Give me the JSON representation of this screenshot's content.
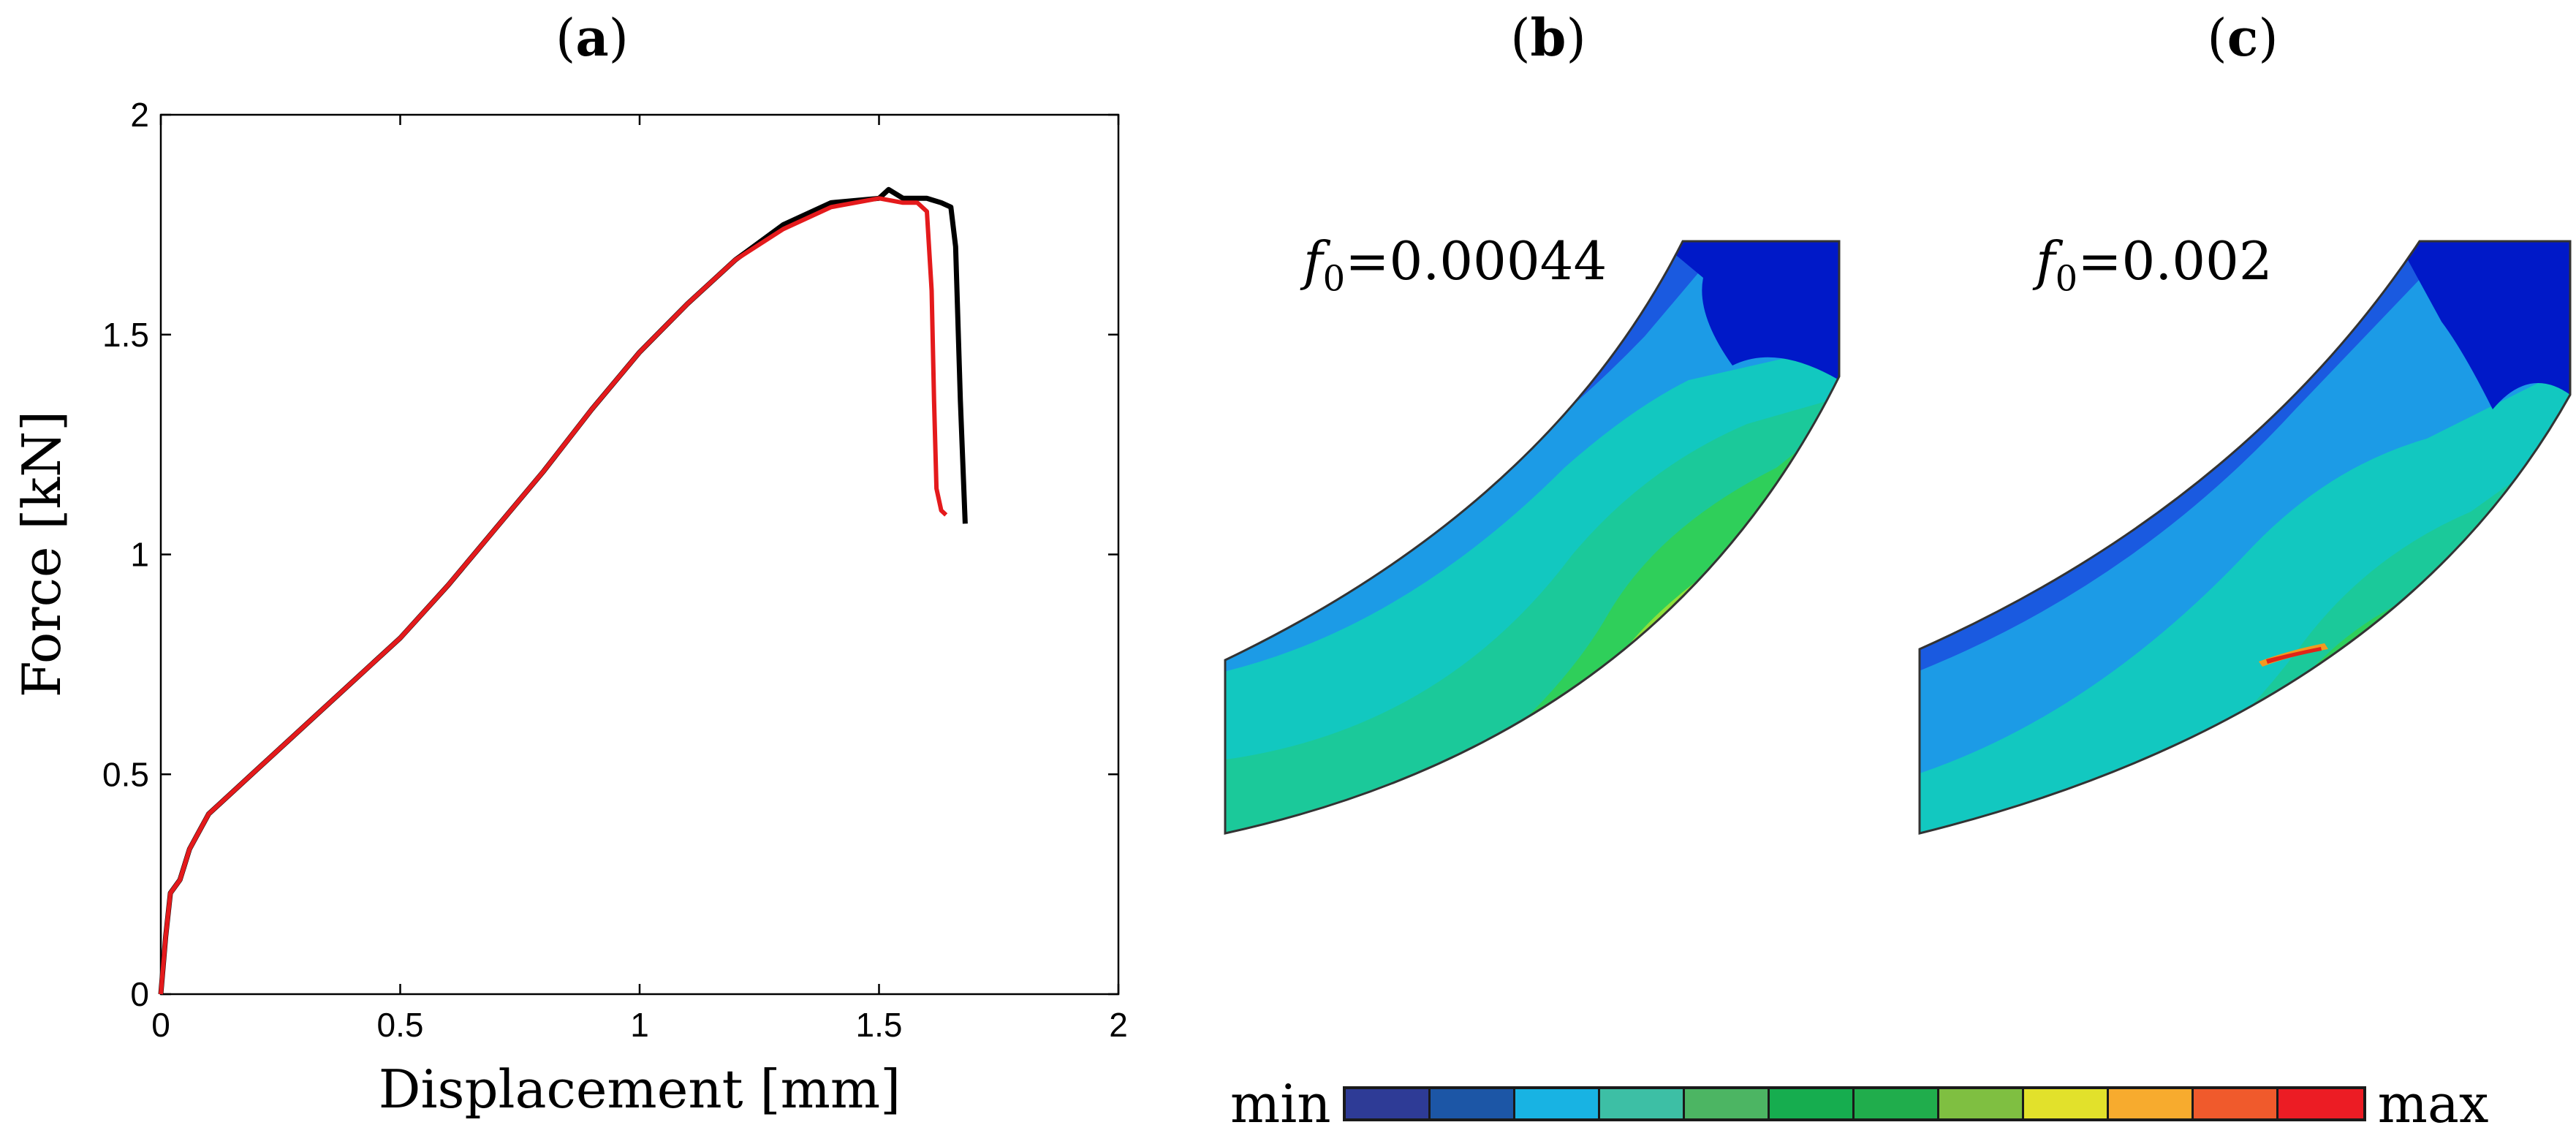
{
  "panels": {
    "a": {
      "open": "(",
      "letter": "a",
      "close": ")"
    },
    "b": {
      "open": "(",
      "letter": "b",
      "close": ")"
    },
    "c": {
      "open": "(",
      "letter": "c",
      "close": ")"
    }
  },
  "chart_data": {
    "type": "line",
    "title": "",
    "xlabel": "Displacement [mm]",
    "ylabel": "Force [kN]",
    "xlim": [
      0,
      2
    ],
    "ylim": [
      0,
      2
    ],
    "xticks": [
      0,
      0.5,
      1,
      1.5,
      2
    ],
    "xtick_labels": [
      "0",
      "0.5",
      "1",
      "1.5",
      "2"
    ],
    "yticks": [
      0,
      0.5,
      1,
      1.5,
      2
    ],
    "ytick_labels": [
      "0",
      "0.5",
      "1",
      "1.5",
      "2"
    ],
    "grid": false,
    "series": [
      {
        "name": "f0=0.00044",
        "color": "#000000",
        "x": [
          0,
          0.01,
          0.02,
          0.04,
          0.06,
          0.08,
          0.1,
          0.15,
          0.2,
          0.3,
          0.4,
          0.5,
          0.6,
          0.7,
          0.8,
          0.9,
          1.0,
          1.1,
          1.2,
          1.3,
          1.4,
          1.5,
          1.52,
          1.55,
          1.6,
          1.63,
          1.65,
          1.66,
          1.67,
          1.68
        ],
        "y": [
          0,
          0.13,
          0.23,
          0.26,
          0.33,
          0.37,
          0.41,
          0.46,
          0.51,
          0.61,
          0.71,
          0.81,
          0.93,
          1.06,
          1.19,
          1.33,
          1.46,
          1.57,
          1.67,
          1.75,
          1.8,
          1.81,
          1.83,
          1.81,
          1.81,
          1.8,
          1.79,
          1.7,
          1.35,
          1.07
        ]
      },
      {
        "name": "f0=0.002",
        "color": "#e41a1c",
        "x": [
          0,
          0.01,
          0.02,
          0.04,
          0.06,
          0.08,
          0.1,
          0.15,
          0.2,
          0.3,
          0.4,
          0.5,
          0.6,
          0.7,
          0.8,
          0.9,
          1.0,
          1.1,
          1.2,
          1.3,
          1.4,
          1.45,
          1.5,
          1.55,
          1.58,
          1.6,
          1.61,
          1.615,
          1.62,
          1.63,
          1.64
        ],
        "y": [
          0,
          0.13,
          0.23,
          0.26,
          0.33,
          0.37,
          0.41,
          0.46,
          0.51,
          0.61,
          0.71,
          0.81,
          0.93,
          1.06,
          1.19,
          1.33,
          1.46,
          1.57,
          1.67,
          1.74,
          1.79,
          1.8,
          1.81,
          1.8,
          1.8,
          1.78,
          1.6,
          1.35,
          1.15,
          1.1,
          1.09
        ]
      }
    ]
  },
  "fe_panels": [
    {
      "sym": "f",
      "sub": "0",
      "value": "=0.00044"
    },
    {
      "sym": "f",
      "sub": "0",
      "value": "=0.002"
    }
  ],
  "colorbar": {
    "min_label": "min",
    "max_label": "max",
    "colors": [
      "#2e3b96",
      "#1c56a6",
      "#18b3e3",
      "#3dbfa5",
      "#4cb563",
      "#16ad4f",
      "#20ad4c",
      "#7fbf41",
      "#e2e12b",
      "#f7ab2e",
      "#f05a2c",
      "#ec1c24"
    ]
  },
  "colors": {
    "contour_blue_dark": "#0019c8",
    "contour_blue": "#1a5ae0",
    "contour_sky": "#1c9be6",
    "contour_cyan": "#12c8c0",
    "contour_teal": "#1bc99a",
    "contour_green": "#2fcf5a",
    "contour_lime": "#8fe03a",
    "contour_yellow": "#e8d82a",
    "contour_orange": "#f39a1f",
    "contour_red": "#e02418"
  }
}
